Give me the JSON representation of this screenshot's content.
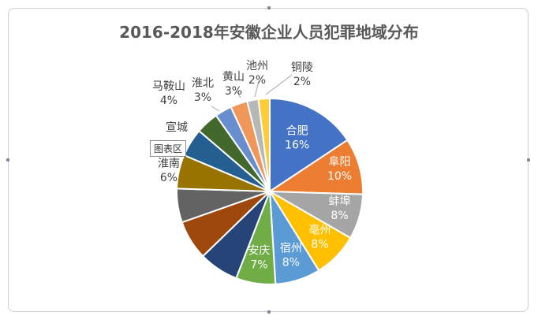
{
  "chart_data": {
    "type": "pie",
    "title": "2016-2018年安徽企业人员犯罪地域分布",
    "slices": [
      {
        "name": "合肥",
        "value": 16,
        "label": "16%",
        "color": "#4472C4"
      },
      {
        "name": "阜阳",
        "value": 10,
        "label": "10%",
        "color": "#ED7D31"
      },
      {
        "name": "蚌埠",
        "value": 8,
        "label": "8%",
        "color": "#A5A5A5"
      },
      {
        "name": "亳州",
        "value": 8,
        "label": "8%",
        "color": "#FFC000"
      },
      {
        "name": "宿州",
        "value": 8,
        "label": "8%",
        "color": "#5B9BD5"
      },
      {
        "name": "安庆",
        "value": 7,
        "label": "7%",
        "color": "#70AD47"
      },
      {
        "name": "",
        "value": 7,
        "label": "",
        "color": "#264478"
      },
      {
        "name": "",
        "value": 7,
        "label": "",
        "color": "#9E480E"
      },
      {
        "name": "",
        "value": 6,
        "label": "",
        "color": "#636363"
      },
      {
        "name": "淮南",
        "value": 6,
        "label": "6%",
        "color": "#997300"
      },
      {
        "name": "宣城",
        "value": 5,
        "label": "",
        "color": "#255E91"
      },
      {
        "name": "马鞍山",
        "value": 4,
        "label": "4%",
        "color": "#43682B"
      },
      {
        "name": "淮北",
        "value": 3,
        "label": "3%",
        "color": "#698ED0"
      },
      {
        "name": "黄山",
        "value": 3,
        "label": "3%",
        "color": "#F1975A"
      },
      {
        "name": "池州",
        "value": 2,
        "label": "2%",
        "color": "#B7B7B7"
      },
      {
        "name": "铜陵",
        "value": 2,
        "label": "2%",
        "color": "#FFCD33"
      }
    ],
    "legend": "none"
  },
  "tooltip": "图表区"
}
